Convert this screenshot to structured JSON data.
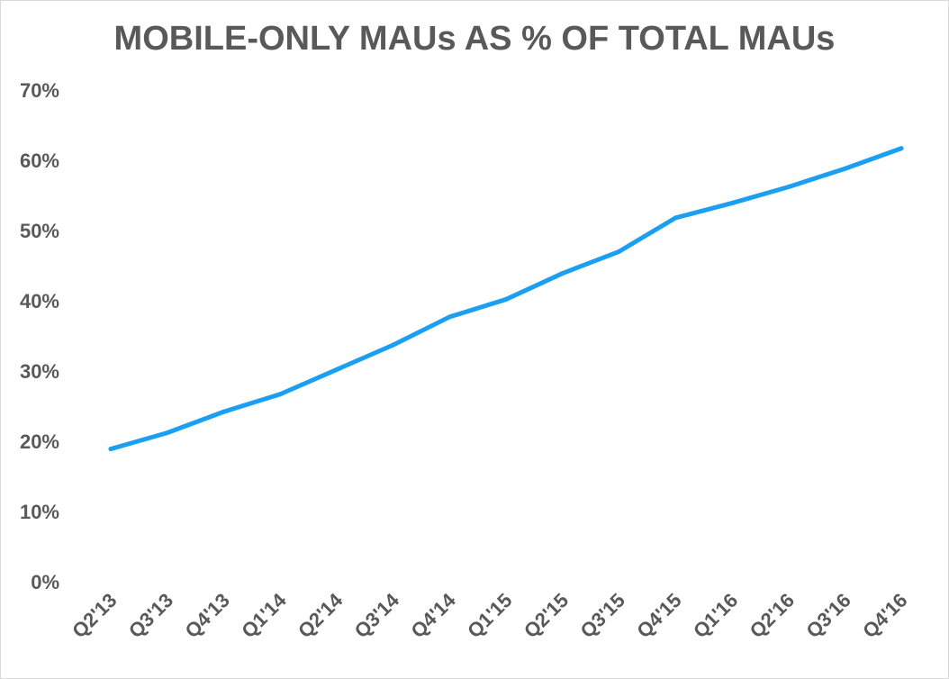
{
  "chart_data": {
    "type": "line",
    "title": "MOBILE-ONLY MAUs AS % OF TOTAL MAUs",
    "xlabel": "",
    "ylabel": "",
    "categories": [
      "Q2'13",
      "Q3'13",
      "Q4'13",
      "Q1'14",
      "Q2'14",
      "Q3'14",
      "Q4'14",
      "Q1'15",
      "Q2'15",
      "Q3'15",
      "Q4'15",
      "Q1'16",
      "Q2'16",
      "Q3'16",
      "Q4'16"
    ],
    "values": [
      18.9,
      21.2,
      24.2,
      26.7,
      30.2,
      33.7,
      37.7,
      40.2,
      43.9,
      47.0,
      51.8,
      53.9,
      56.2,
      58.8,
      61.7
    ],
    "ylim": [
      0,
      70
    ],
    "yticks": [
      "0%",
      "10%",
      "20%",
      "30%",
      "40%",
      "50%",
      "60%",
      "70%"
    ],
    "grid": false,
    "legend": "none",
    "line_color": "#1a9ff2"
  }
}
